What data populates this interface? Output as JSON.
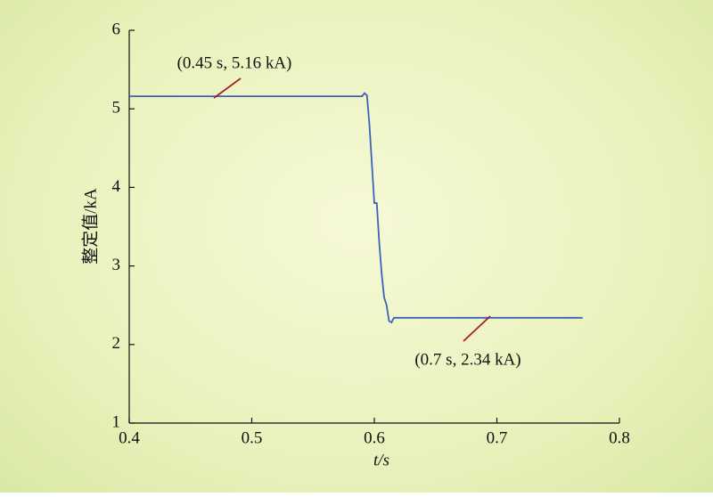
{
  "chart_data": {
    "type": "line",
    "x_label": "t/s",
    "y_label": "整定值/kA",
    "xlim": [
      0.4,
      0.8
    ],
    "xticks": [
      0.4,
      0.5,
      0.6,
      0.7,
      0.8
    ],
    "ylim": [
      1,
      6
    ],
    "yticks": [
      1,
      2,
      3,
      4,
      5,
      6
    ],
    "x": [
      0.4,
      0.59,
      0.592,
      0.594,
      0.596,
      0.598,
      0.6,
      0.602,
      0.604,
      0.606,
      0.608,
      0.61,
      0.612,
      0.614,
      0.616,
      0.77
    ],
    "series": [
      {
        "color": "#3a63b8",
        "values": [
          5.16,
          5.16,
          5.2,
          5.17,
          4.8,
          4.3,
          3.8,
          3.8,
          3.3,
          2.9,
          2.6,
          2.5,
          2.3,
          2.28,
          2.34,
          2.34
        ]
      }
    ],
    "annotations": [
      "(0.45 s, 5.16 kA)",
      "(0.7 s, 2.34 kA)"
    ],
    "annotation_color": "#a3222b"
  }
}
